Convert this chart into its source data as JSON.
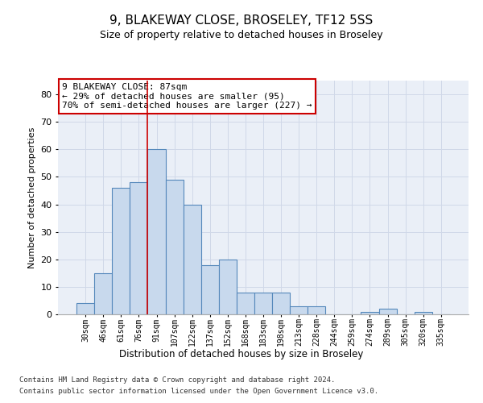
{
  "title": "9, BLAKEWAY CLOSE, BROSELEY, TF12 5SS",
  "subtitle": "Size of property relative to detached houses in Broseley",
  "xlabel": "Distribution of detached houses by size in Broseley",
  "ylabel": "Number of detached properties",
  "bar_labels": [
    "30sqm",
    "46sqm",
    "61sqm",
    "76sqm",
    "91sqm",
    "107sqm",
    "122sqm",
    "137sqm",
    "152sqm",
    "168sqm",
    "183sqm",
    "198sqm",
    "213sqm",
    "228sqm",
    "244sqm",
    "259sqm",
    "274sqm",
    "289sqm",
    "305sqm",
    "320sqm",
    "335sqm"
  ],
  "bar_values": [
    4,
    15,
    46,
    48,
    60,
    49,
    40,
    18,
    20,
    8,
    8,
    8,
    3,
    3,
    0,
    0,
    1,
    2,
    0,
    1,
    0
  ],
  "bar_color": "#c8d9ed",
  "bar_edge_color": "#5588bb",
  "vline_color": "#cc0000",
  "annotation_text": "9 BLAKEWAY CLOSE: 87sqm\n← 29% of detached houses are smaller (95)\n70% of semi-detached houses are larger (227) →",
  "annotation_box_color": "#ffffff",
  "annotation_box_edge": "#cc0000",
  "ylim": [
    0,
    85
  ],
  "yticks": [
    0,
    10,
    20,
    30,
    40,
    50,
    60,
    70,
    80
  ],
  "grid_color": "#d0d8e8",
  "bg_color": "#eaeff7",
  "footer_line1": "Contains HM Land Registry data © Crown copyright and database right 2024.",
  "footer_line2": "Contains public sector information licensed under the Open Government Licence v3.0."
}
